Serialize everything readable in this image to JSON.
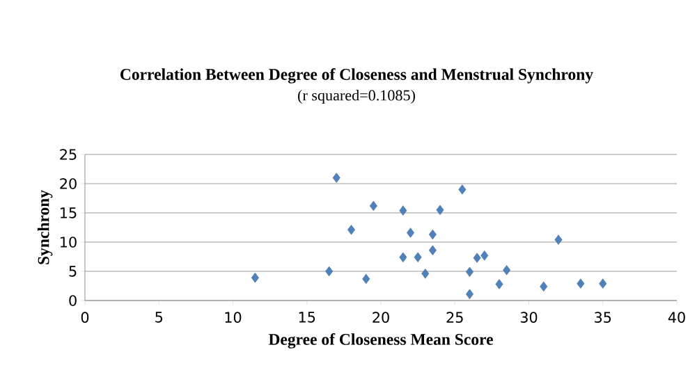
{
  "chart_data": {
    "type": "scatter",
    "title": "Correlation Between Degree of Closeness and Menstrual Synchrony",
    "subtitle": "(r squared=0.1085)",
    "xlabel": "Degree of Closeness Mean Score",
    "ylabel": "Synchrony",
    "x": [
      11.5,
      16.5,
      17,
      19.5,
      18,
      19,
      21.5,
      22,
      21.5,
      22.5,
      23,
      23.5,
      23.5,
      24,
      25.5,
      26,
      26,
      26.5,
      27,
      28,
      28.5,
      31,
      32,
      33.5,
      35
    ],
    "values": [
      3.9,
      5,
      21,
      16.2,
      12.1,
      3.7,
      15.4,
      11.6,
      7.4,
      7.4,
      4.6,
      11.3,
      8.6,
      15.5,
      19,
      4.9,
      1.1,
      7.3,
      7.7,
      2.8,
      5.2,
      2.4,
      10.4,
      2.9,
      2.9
    ],
    "color": "#4f81bd",
    "marker": "diamond",
    "grid": "y",
    "xlim": [
      0,
      40
    ],
    "xticks": [
      0,
      5,
      10,
      15,
      20,
      25,
      30,
      35,
      40
    ],
    "ylim": [
      0,
      25
    ],
    "yticks": [
      0,
      5,
      10,
      15,
      20,
      25
    ]
  }
}
